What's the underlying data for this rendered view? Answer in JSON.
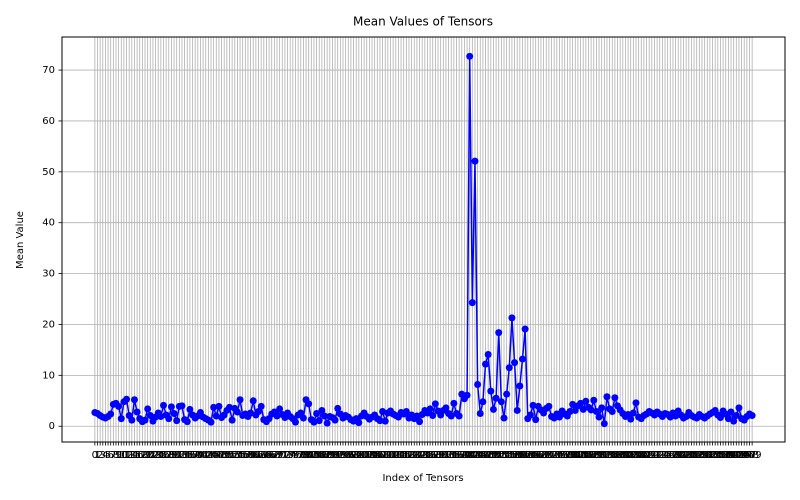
{
  "chart_data": {
    "type": "line",
    "title": "Mean Values of Tensors",
    "x_label": "Index of Tensors",
    "y_label": "Mean Value",
    "x": [
      0,
      1,
      2,
      3,
      4,
      5,
      6,
      7,
      8,
      9,
      10,
      11,
      12,
      13,
      14,
      15,
      16,
      17,
      18,
      19,
      20,
      21,
      22,
      23,
      24,
      25,
      26,
      27,
      28,
      29,
      30,
      31,
      32,
      33,
      34,
      35,
      36,
      37,
      38,
      39,
      40,
      41,
      42,
      43,
      44,
      45,
      46,
      47,
      48,
      49,
      50,
      51,
      52,
      53,
      54,
      55,
      56,
      57,
      58,
      59,
      60,
      61,
      62,
      63,
      64,
      65,
      66,
      67,
      68,
      69,
      70,
      71,
      72,
      73,
      74,
      75,
      76,
      77,
      78,
      79,
      80,
      81,
      82,
      83,
      84,
      85,
      86,
      87,
      88,
      89,
      90,
      91,
      92,
      93,
      94,
      95,
      96,
      97,
      98,
      99,
      100,
      101,
      102,
      103,
      104,
      105,
      106,
      107,
      108,
      109,
      110,
      111,
      112,
      113,
      114,
      115,
      116,
      117,
      118,
      119,
      120,
      121,
      122,
      123,
      124,
      125,
      126,
      127,
      128,
      129,
      130,
      131,
      132,
      133,
      134,
      135,
      136,
      137,
      138,
      139,
      140,
      141,
      142,
      143,
      144,
      145,
      146,
      147,
      148,
      149,
      150,
      151,
      152,
      153,
      154,
      155,
      156,
      157,
      158,
      159,
      160,
      161,
      162,
      163,
      164,
      165,
      166,
      167,
      168,
      169,
      170,
      171,
      172,
      173,
      174,
      175,
      176,
      177,
      178,
      179,
      180,
      181,
      182,
      183,
      184,
      185,
      186,
      187,
      188,
      189,
      190,
      191,
      192,
      193,
      194,
      195,
      196,
      197,
      198,
      199,
      200,
      201,
      202,
      203,
      204,
      205,
      206,
      207,
      208,
      209,
      210,
      211,
      212,
      213,
      214,
      215,
      216,
      217,
      218,
      219,
      220,
      221,
      222,
      223,
      224,
      225,
      226,
      227,
      228,
      229,
      230,
      231,
      232,
      233,
      234,
      235,
      236,
      237,
      238,
      239,
      240,
      241,
      242,
      243,
      244,
      245,
      246,
      247,
      248,
      249
    ],
    "series": [
      {
        "name": "Mean Value",
        "color": "#0000ff",
        "values": [
          2.7,
          2.5,
          2.1,
          1.8,
          1.6,
          1.9,
          2.4,
          4.3,
          4.5,
          3.9,
          1.5,
          4.8,
          5.3,
          2.1,
          1.2,
          5.2,
          2.8,
          1.5,
          0.9,
          1.2,
          3.4,
          2.1,
          1.0,
          1.8,
          2.6,
          1.9,
          4.1,
          2.2,
          1.5,
          3.8,
          2.5,
          1.1,
          3.9,
          4.0,
          1.3,
          0.9,
          3.3,
          2.2,
          1.6,
          2.0,
          2.7,
          1.8,
          1.5,
          1.2,
          0.8,
          3.7,
          2.0,
          3.9,
          1.7,
          2.2,
          3.1,
          3.7,
          1.2,
          3.5,
          2.8,
          5.2,
          2.1,
          2.4,
          1.9,
          2.6,
          5.0,
          2.2,
          2.9,
          3.9,
          1.3,
          0.9,
          1.5,
          2.4,
          2.8,
          2.0,
          3.4,
          2.3,
          1.7,
          2.6,
          1.9,
          1.5,
          0.8,
          2.2,
          2.6,
          1.6,
          5.2,
          4.4,
          1.3,
          0.8,
          2.5,
          1.1,
          3.1,
          2.0,
          0.6,
          1.9,
          1.7,
          1.2,
          3.5,
          2.4,
          1.6,
          2.1,
          1.8,
          1.3,
          1.0,
          1.5,
          0.7,
          2.0,
          2.6,
          1.9,
          1.4,
          1.8,
          2.2,
          1.5,
          1.1,
          2.9,
          1.0,
          2.6,
          3.0,
          2.4,
          2.1,
          1.8,
          2.7,
          2.4,
          2.9,
          1.6,
          2.2,
          1.5,
          2.0,
          0.9,
          2.3,
          3.1,
          2.6,
          3.4,
          2.1,
          4.4,
          3.0,
          2.2,
          3.1,
          3.6,
          2.5,
          2.0,
          4.5,
          2.5,
          2.0,
          6.3,
          5.4,
          6.1,
          72.7,
          24.3,
          52.1,
          8.2,
          2.5,
          4.8,
          12.2,
          14.1,
          6.9,
          3.3,
          5.5,
          18.4,
          4.8,
          1.6,
          6.3,
          11.5,
          21.3,
          12.5,
          3.1,
          7.9,
          13.2,
          19.1,
          1.5,
          2.2,
          4.1,
          1.3,
          3.9,
          3.2,
          2.6,
          3.5,
          3.9,
          1.9,
          1.6,
          2.4,
          1.8,
          3.0,
          2.4,
          2.0,
          2.9,
          4.3,
          3.1,
          4.0,
          4.5,
          3.3,
          4.9,
          3.7,
          3.2,
          5.1,
          2.9,
          1.8,
          3.6,
          0.5,
          5.8,
          3.4,
          2.9,
          5.6,
          4.0,
          3.2,
          2.5,
          1.9,
          2.3,
          1.4,
          2.6,
          4.6,
          1.8,
          1.5,
          2.1,
          2.4,
          2.9,
          2.6,
          2.2,
          2.8,
          2.4,
          1.9,
          2.5,
          2.3,
          1.8,
          2.6,
          2.0,
          3.0,
          2.2,
          1.6,
          1.9,
          2.7,
          2.1,
          1.8,
          1.6,
          2.3,
          1.9,
          1.6,
          2.0,
          2.4,
          2.7,
          3.1,
          2.2,
          1.7,
          3.0,
          2.4,
          1.5,
          2.8,
          1.0,
          2.1,
          3.6,
          1.5,
          1.2,
          1.9,
          2.4,
          2.1
        ]
      }
    ],
    "xlim": [
      -12.45,
      261.45
    ],
    "xticks": [
      0,
      1,
      2,
      3,
      4,
      5,
      6,
      7,
      8,
      9,
      10,
      11,
      12,
      13,
      14,
      15,
      16,
      17,
      18,
      19,
      20,
      21,
      22,
      23,
      24,
      25,
      26,
      27,
      28,
      29,
      30,
      31,
      32,
      33,
      34,
      35,
      36,
      37,
      38,
      39,
      40,
      41,
      42,
      43,
      44,
      45,
      46,
      47,
      48,
      49,
      50,
      51,
      52,
      53,
      54,
      55,
      56,
      57,
      58,
      59,
      60,
      61,
      62,
      63,
      64,
      65,
      66,
      67,
      68,
      69,
      70,
      71,
      72,
      73,
      74,
      75,
      76,
      77,
      78,
      79,
      80,
      81,
      82,
      83,
      84,
      85,
      86,
      87,
      88,
      89,
      90,
      91,
      92,
      93,
      94,
      95,
      96,
      97,
      98,
      99,
      100,
      101,
      102,
      103,
      104,
      105,
      106,
      107,
      108,
      109,
      110,
      111,
      112,
      113,
      114,
      115,
      116,
      117,
      118,
      119,
      120,
      121,
      122,
      123,
      124,
      125,
      126,
      127,
      128,
      129,
      130,
      131,
      132,
      133,
      134,
      135,
      136,
      137,
      138,
      139,
      140,
      141,
      142,
      143,
      144,
      145,
      146,
      147,
      148,
      149,
      150,
      151,
      152,
      153,
      154,
      155,
      156,
      157,
      158,
      159,
      160,
      161,
      162,
      163,
      164,
      165,
      166,
      167,
      168,
      169,
      170,
      171,
      172,
      173,
      174,
      175,
      176,
      177,
      178,
      179,
      180,
      181,
      182,
      183,
      184,
      185,
      186,
      187,
      188,
      189,
      190,
      191,
      192,
      193,
      194,
      195,
      196,
      197,
      198,
      199,
      200,
      201,
      202,
      203,
      204,
      205,
      206,
      207,
      208,
      209,
      210,
      211,
      212,
      213,
      214,
      215,
      216,
      217,
      218,
      219,
      220,
      221,
      222,
      223,
      224,
      225,
      226,
      227,
      228,
      229,
      230,
      231,
      232,
      233,
      234,
      235,
      236,
      237,
      238,
      239,
      240,
      241,
      242,
      243,
      244,
      245,
      246,
      247,
      248,
      249
    ],
    "ylim": [
      -3.1,
      76.5
    ],
    "yticks": [
      0,
      10,
      20,
      30,
      40,
      50,
      60,
      70
    ],
    "grid": true,
    "marker": "o"
  }
}
